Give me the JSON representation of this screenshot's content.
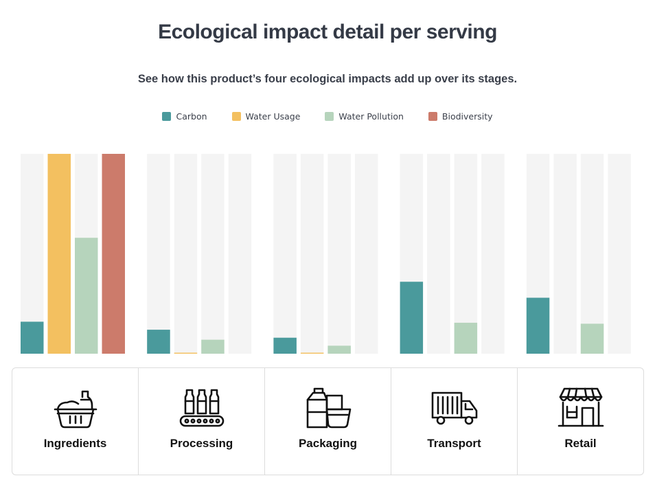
{
  "title": "Ecological impact detail per serving",
  "subtitle": "See how this product’s four ecological impacts add up over its stages.",
  "legend": [
    {
      "label": "Carbon",
      "color": "#4a9a9c"
    },
    {
      "label": "Water Usage",
      "color": "#f3c060"
    },
    {
      "label": "Water Pollution",
      "color": "#b6d4bc"
    },
    {
      "label": "Biodiversity",
      "color": "#cc7b6b"
    }
  ],
  "stages": [
    {
      "label": "Ingredients",
      "icon": "basket-icon"
    },
    {
      "label": "Processing",
      "icon": "conveyor-bottles-icon"
    },
    {
      "label": "Packaging",
      "icon": "packages-icon"
    },
    {
      "label": "Transport",
      "icon": "truck-icon"
    },
    {
      "label": "Retail",
      "icon": "storefront-icon"
    }
  ],
  "chart_data": {
    "type": "bar",
    "categories": [
      "Ingredients",
      "Processing",
      "Packaging",
      "Transport",
      "Retail"
    ],
    "series": [
      {
        "name": "Carbon",
        "color": "#4a9a9c",
        "values": [
          0.16,
          0.12,
          0.08,
          0.36,
          0.28
        ]
      },
      {
        "name": "Water Usage",
        "color": "#f3c060",
        "values": [
          1.0,
          0.005,
          0.005,
          0.0,
          0.0
        ]
      },
      {
        "name": "Water Pollution",
        "color": "#b6d4bc",
        "values": [
          0.58,
          0.07,
          0.04,
          0.155,
          0.15
        ]
      },
      {
        "name": "Biodiversity",
        "color": "#cc7b6b",
        "values": [
          1.0,
          0.0,
          0.0,
          0.0,
          0.0
        ]
      }
    ],
    "ylim": [
      0,
      1
    ],
    "track_color": "#f4f4f4",
    "grid": false,
    "legend_position": "top-center"
  }
}
